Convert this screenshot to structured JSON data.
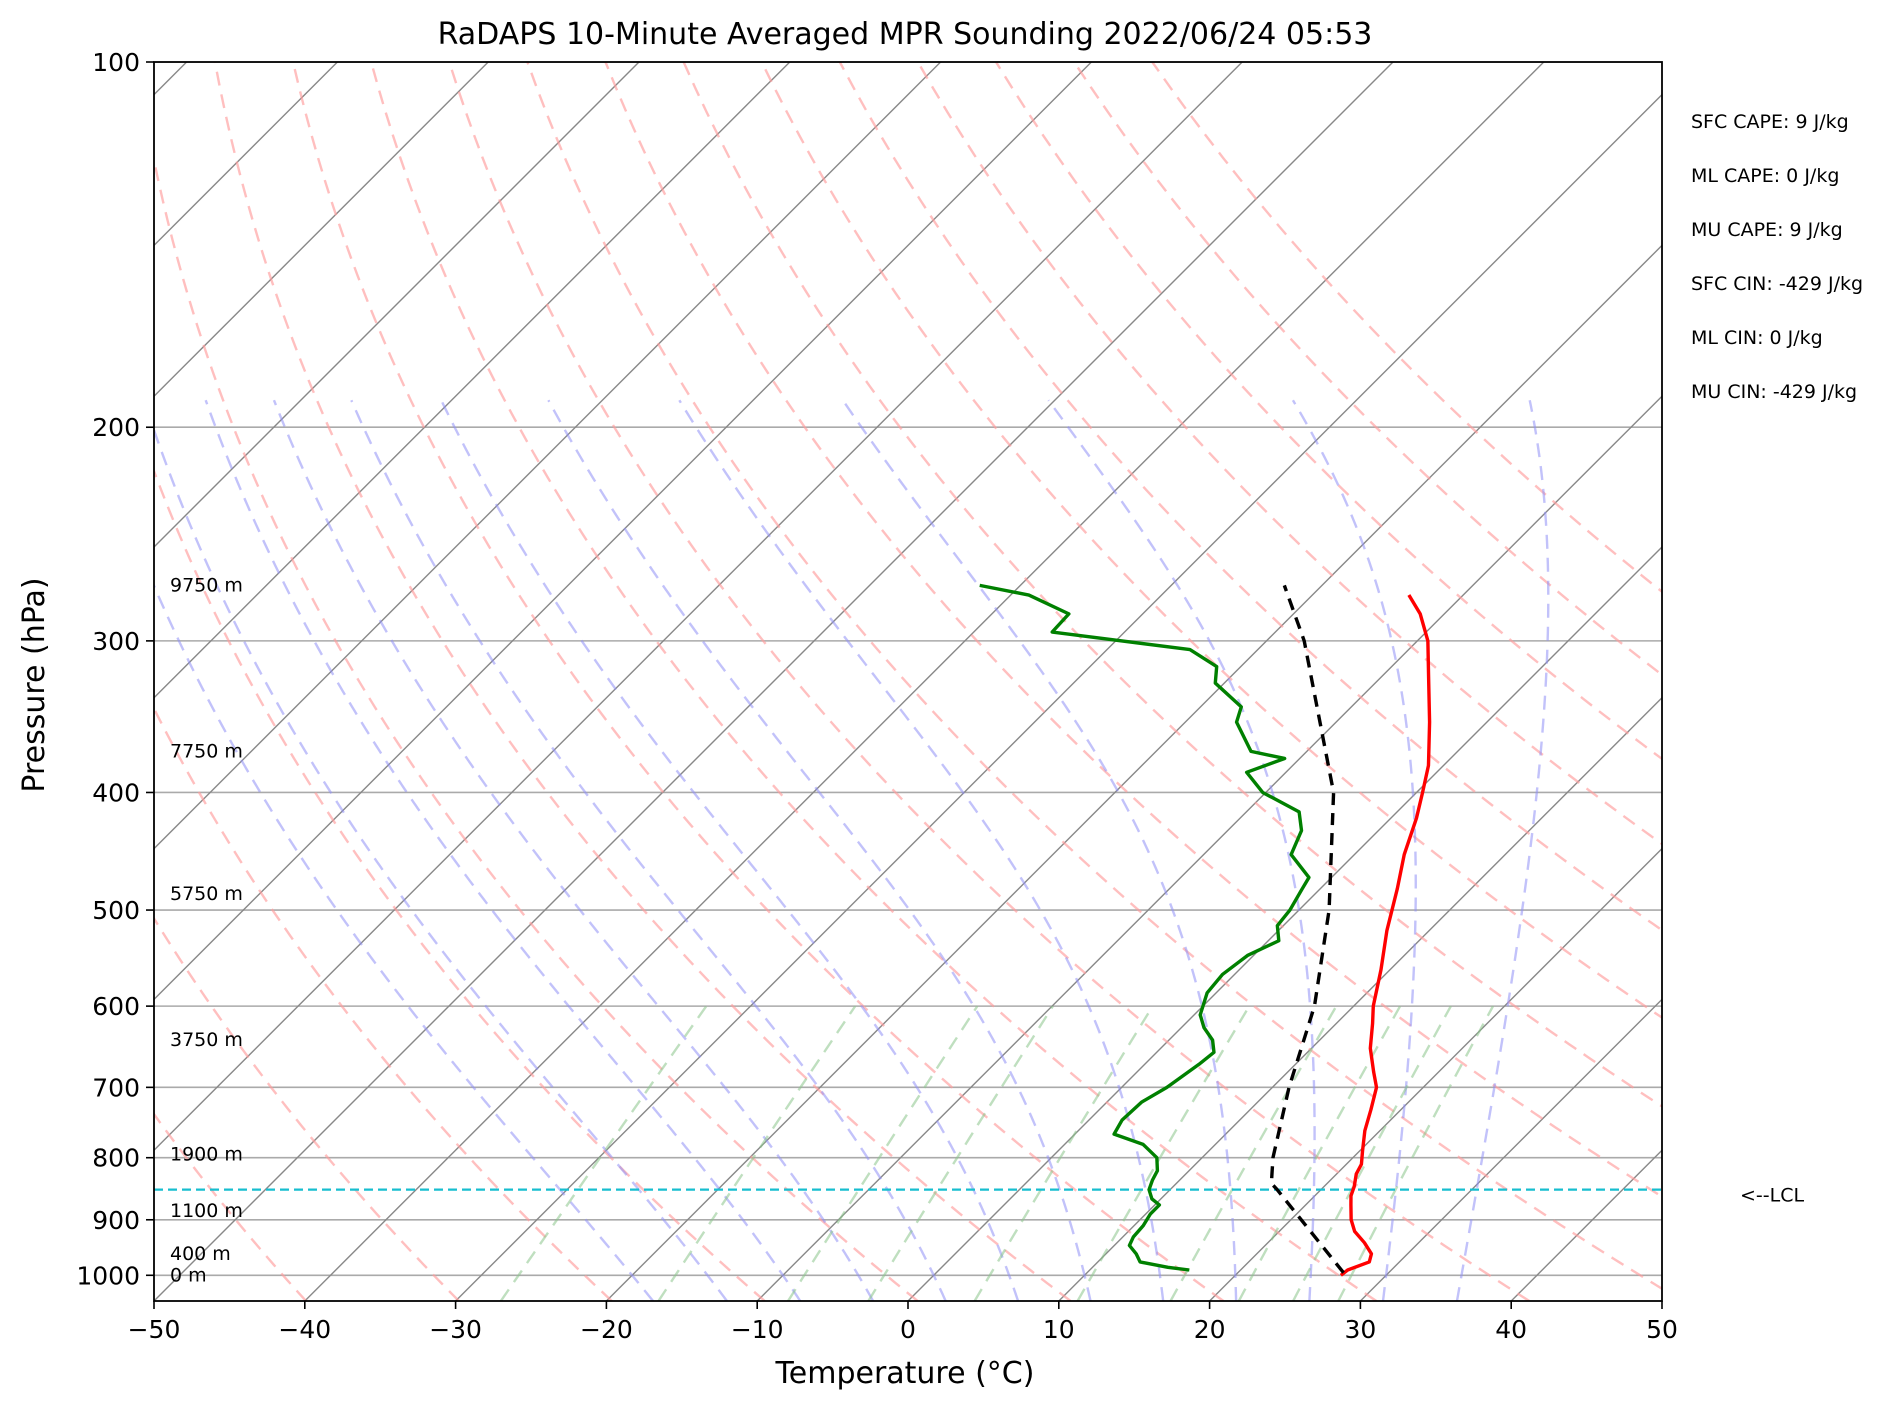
{
  "chart_data": {
    "type": "skew-t",
    "title": "RaDAPS 10-Minute Averaged MPR Sounding 2022/06/24 05:53",
    "xlabel": "Temperature (°C)",
    "ylabel": "Pressure (hPa)",
    "xlim": [
      -50,
      50
    ],
    "ylim": [
      1050,
      100
    ],
    "y_scale": "log",
    "x_ticks": [
      -50,
      -40,
      -30,
      -20,
      -10,
      0,
      10,
      20,
      30,
      40,
      50
    ],
    "x_tick_labels": [
      "−50",
      "−40",
      "−30",
      "−20",
      "−10",
      "0",
      "10",
      "20",
      "30",
      "40",
      "50"
    ],
    "y_ticks": [
      100,
      200,
      300,
      400,
      500,
      600,
      700,
      800,
      900,
      1000
    ],
    "y_tick_labels": [
      "100",
      "200",
      "300",
      "400",
      "500",
      "600",
      "700",
      "800",
      "900",
      "1000"
    ],
    "grid": true,
    "isotherms_c": [
      -160,
      -150,
      -140,
      -130,
      -120,
      -110,
      -100,
      -90,
      -80,
      -70,
      -60,
      -50,
      -40,
      -30,
      -20,
      -10,
      0,
      10,
      20,
      30,
      40,
      50
    ],
    "dry_adiabats_k": [
      230,
      240,
      250,
      260,
      270,
      280,
      290,
      300,
      310,
      320,
      330,
      340,
      350,
      360,
      370,
      380,
      390,
      400
    ],
    "moist_adiabats_c": [
      -20,
      -15,
      -10,
      -5,
      0,
      5,
      10,
      15,
      20,
      25,
      30,
      35
    ],
    "mixing_ratios_gkg": [
      0.4,
      1,
      2,
      3,
      5,
      8,
      12,
      16,
      20,
      24
    ],
    "series": [
      {
        "role": "temperature",
        "color": "#ff0000",
        "points": [
          [
            1000,
            27.0
          ],
          [
            990,
            27.1
          ],
          [
            975,
            28.0
          ],
          [
            960,
            27.6
          ],
          [
            940,
            26.4
          ],
          [
            920,
            25.0
          ],
          [
            900,
            24.0
          ],
          [
            875,
            23.0
          ],
          [
            860,
            22.4
          ],
          [
            845,
            22.0
          ],
          [
            825,
            21.3
          ],
          [
            810,
            21.0
          ],
          [
            790,
            20.2
          ],
          [
            760,
            19.0
          ],
          [
            730,
            18.0
          ],
          [
            700,
            16.9
          ],
          [
            680,
            15.7
          ],
          [
            650,
            13.9
          ],
          [
            620,
            12.4
          ],
          [
            600,
            11.3
          ],
          [
            560,
            9.4
          ],
          [
            520,
            7.2
          ],
          [
            480,
            5.1
          ],
          [
            450,
            3.3
          ],
          [
            420,
            1.7
          ],
          [
            400,
            0.4
          ],
          [
            380,
            -1.0
          ],
          [
            350,
            -3.8
          ],
          [
            320,
            -7.0
          ],
          [
            300,
            -9.3
          ],
          [
            285,
            -11.6
          ],
          [
            275,
            -13.6
          ]
        ]
      },
      {
        "role": "dewpoint",
        "color": "#008000",
        "points": [
          [
            990,
            16.6
          ],
          [
            985,
            15.0
          ],
          [
            975,
            12.8
          ],
          [
            960,
            12.0
          ],
          [
            945,
            11.0
          ],
          [
            930,
            10.7
          ],
          [
            910,
            10.6
          ],
          [
            890,
            10.3
          ],
          [
            875,
            10.3
          ],
          [
            865,
            9.4
          ],
          [
            850,
            8.6
          ],
          [
            835,
            8.2
          ],
          [
            820,
            7.9
          ],
          [
            800,
            7.0
          ],
          [
            780,
            5.2
          ],
          [
            765,
            2.6
          ],
          [
            745,
            2.2
          ],
          [
            720,
            2.3
          ],
          [
            700,
            3.0
          ],
          [
            670,
            3.6
          ],
          [
            655,
            3.8
          ],
          [
            640,
            2.9
          ],
          [
            625,
            1.5
          ],
          [
            610,
            0.4
          ],
          [
            585,
            -0.6
          ],
          [
            565,
            -0.8
          ],
          [
            545,
            -0.4
          ],
          [
            530,
            0.7
          ],
          [
            515,
            -0.4
          ],
          [
            500,
            -0.6
          ],
          [
            480,
            -1.2
          ],
          [
            470,
            -1.5
          ],
          [
            450,
            -4.2
          ],
          [
            430,
            -5.1
          ],
          [
            415,
            -6.5
          ],
          [
            400,
            -10.2
          ],
          [
            385,
            -12.6
          ],
          [
            375,
            -11.0
          ],
          [
            370,
            -13.7
          ],
          [
            350,
            -16.6
          ],
          [
            340,
            -17.3
          ],
          [
            325,
            -20.6
          ],
          [
            315,
            -21.6
          ],
          [
            305,
            -24.5
          ],
          [
            295,
            -34.8
          ],
          [
            285,
            -34.9
          ],
          [
            275,
            -38.8
          ],
          [
            270,
            -42.7
          ]
        ]
      },
      {
        "role": "parcel",
        "color": "#000000",
        "dashed": true,
        "points": [
          [
            995,
            27.0
          ],
          [
            850,
            17.1
          ],
          [
            840,
            16.3
          ],
          [
            800,
            14.7
          ],
          [
            700,
            11.1
          ],
          [
            600,
            7.4
          ],
          [
            500,
            2.0
          ],
          [
            400,
            -5.5
          ],
          [
            300,
            -17.5
          ],
          [
            270,
            -22.5
          ]
        ]
      }
    ],
    "height_labels": [
      {
        "text": "9750 m",
        "p": 270
      },
      {
        "text": "7750 m",
        "p": 370
      },
      {
        "text": "5750 m",
        "p": 485
      },
      {
        "text": "3750 m",
        "p": 640
      },
      {
        "text": "1900 m",
        "p": 795
      },
      {
        "text": "1100 m",
        "p": 885
      },
      {
        "text": "400 m",
        "p": 960
      },
      {
        "text": "0 m",
        "p": 1000
      }
    ],
    "lcl": {
      "p": 850,
      "label": "<--LCL",
      "color": "#17becf"
    },
    "annotations": [
      "SFC CAPE: 9 J/kg",
      "ML CAPE: 0 J/kg",
      "MU CAPE: 9 J/kg",
      "SFC CIN: -429 J/kg",
      "ML CIN: 0 J/kg",
      "MU CIN: -429 J/kg"
    ],
    "colors": {
      "isotherm": "#888888",
      "dry_adiabat": "#ff9d9d",
      "moist_adiabat": "#8f8ff5",
      "mixing_ratio": "#8ac48a",
      "grid": "#aaaaaa"
    }
  }
}
